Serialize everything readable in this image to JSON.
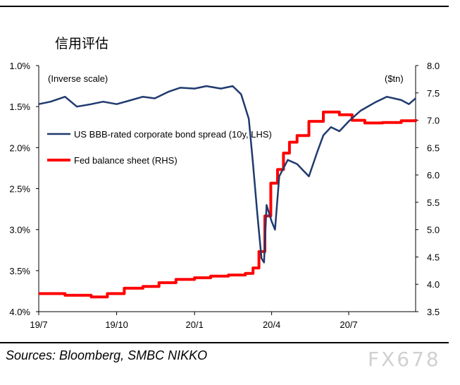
{
  "title": "信用评估",
  "source": "Sources: Bloomberg, SMBC NIKKO",
  "watermark": "FX678",
  "chart_data": {
    "type": "line",
    "annotation_left": "(Inverse scale)",
    "annotation_right": "($tn)",
    "legend_position": "upper-left",
    "grid": false,
    "x_ticks": [
      "19/7",
      "19/10",
      "20/1",
      "20/4",
      "20/7"
    ],
    "x_range": [
      "2019-07-01",
      "2020-09-18"
    ],
    "y_left": {
      "ticks": [
        "1.0%",
        "1.5%",
        "2.0%",
        "2.5%",
        "3.0%",
        "3.5%",
        "4.0%"
      ],
      "range": [
        1.0,
        4.0
      ],
      "inverted": true
    },
    "y_right": {
      "ticks": [
        "8.0",
        "7.5",
        "7.0",
        "6.5",
        "6.0",
        "5.5",
        "5.0",
        "4.5",
        "4.0",
        "3.5"
      ],
      "range": [
        3.5,
        8.0
      ]
    },
    "series": [
      {
        "name": "US BBB-rated corporate bond spread (10y, LHS)",
        "color": "#1f3a6e",
        "axis": "left",
        "points": [
          [
            "2019-07-01",
            1.47
          ],
          [
            "2019-07-15",
            1.44
          ],
          [
            "2019-08-01",
            1.38
          ],
          [
            "2019-08-15",
            1.5
          ],
          [
            "2019-09-01",
            1.47
          ],
          [
            "2019-09-15",
            1.44
          ],
          [
            "2019-10-01",
            1.47
          ],
          [
            "2019-10-15",
            1.43
          ],
          [
            "2019-11-01",
            1.38
          ],
          [
            "2019-11-15",
            1.4
          ],
          [
            "2019-12-01",
            1.32
          ],
          [
            "2019-12-15",
            1.27
          ],
          [
            "2020-01-01",
            1.28
          ],
          [
            "2020-01-15",
            1.25
          ],
          [
            "2020-02-01",
            1.28
          ],
          [
            "2020-02-15",
            1.25
          ],
          [
            "2020-02-25",
            1.35
          ],
          [
            "2020-03-05",
            1.65
          ],
          [
            "2020-03-10",
            2.2
          ],
          [
            "2020-03-15",
            2.8
          ],
          [
            "2020-03-20",
            3.35
          ],
          [
            "2020-03-23",
            3.4
          ],
          [
            "2020-03-26",
            2.7
          ],
          [
            "2020-04-01",
            2.9
          ],
          [
            "2020-04-05",
            3.0
          ],
          [
            "2020-04-10",
            2.35
          ],
          [
            "2020-04-20",
            2.15
          ],
          [
            "2020-05-01",
            2.2
          ],
          [
            "2020-05-15",
            2.35
          ],
          [
            "2020-05-25",
            2.05
          ],
          [
            "2020-06-01",
            1.85
          ],
          [
            "2020-06-10",
            1.75
          ],
          [
            "2020-06-20",
            1.8
          ],
          [
            "2020-07-01",
            1.68
          ],
          [
            "2020-07-15",
            1.55
          ],
          [
            "2020-08-01",
            1.45
          ],
          [
            "2020-08-15",
            1.38
          ],
          [
            "2020-09-01",
            1.42
          ],
          [
            "2020-09-10",
            1.47
          ],
          [
            "2020-09-18",
            1.4
          ]
        ]
      },
      {
        "name": "Fed balance sheet (RHS)",
        "color": "#ff0000",
        "axis": "right",
        "points": [
          [
            "2019-07-01",
            3.83
          ],
          [
            "2019-08-01",
            3.8
          ],
          [
            "2019-09-01",
            3.77
          ],
          [
            "2019-09-20",
            3.83
          ],
          [
            "2019-10-10",
            3.93
          ],
          [
            "2019-11-01",
            3.96
          ],
          [
            "2019-11-20",
            4.03
          ],
          [
            "2019-12-10",
            4.09
          ],
          [
            "2020-01-01",
            4.12
          ],
          [
            "2020-01-20",
            4.15
          ],
          [
            "2020-02-10",
            4.17
          ],
          [
            "2020-03-01",
            4.2
          ],
          [
            "2020-03-10",
            4.3
          ],
          [
            "2020-03-17",
            4.6
          ],
          [
            "2020-03-24",
            5.25
          ],
          [
            "2020-03-31",
            5.85
          ],
          [
            "2020-04-08",
            6.1
          ],
          [
            "2020-04-15",
            6.4
          ],
          [
            "2020-04-22",
            6.6
          ],
          [
            "2020-05-01",
            6.72
          ],
          [
            "2020-05-15",
            6.98
          ],
          [
            "2020-06-01",
            7.15
          ],
          [
            "2020-06-20",
            7.1
          ],
          [
            "2020-07-05",
            7.0
          ],
          [
            "2020-07-20",
            6.95
          ],
          [
            "2020-08-10",
            6.96
          ],
          [
            "2020-09-01",
            6.99
          ],
          [
            "2020-09-18",
            7.02
          ]
        ]
      }
    ]
  }
}
